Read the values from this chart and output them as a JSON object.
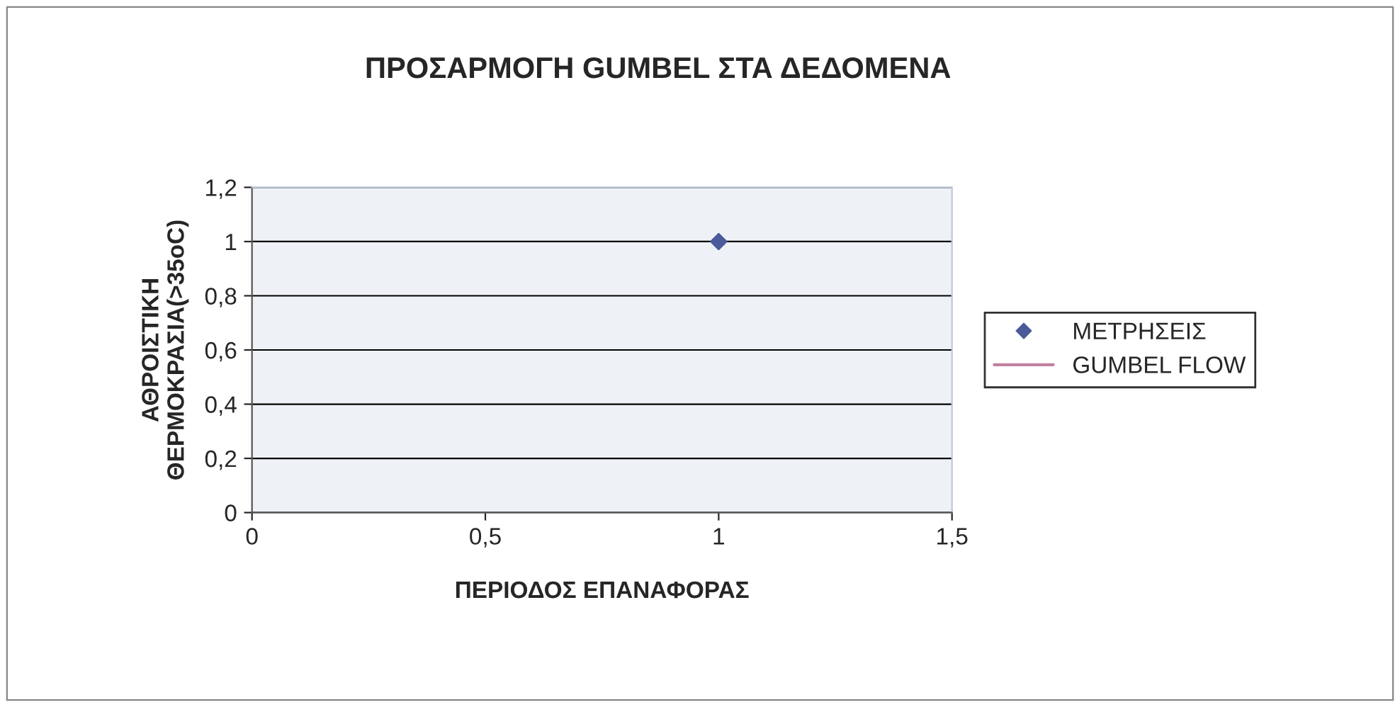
{
  "chart_data": {
    "type": "scatter",
    "title": "ΠΡΟΣΑΡΜΟΓΗ GUMBEL ΣΤΑ ΔΕΔΟΜΕΝΑ",
    "xlabel": "ΠΕΡΙΟΔΟΣ ΕΠΑΝΑΦΟΡΑΣ",
    "ylabel": "ΑΘΡΟΙΣΤΙΚΗ\nΘΕΡΜΟΚΡΑΣΙΑ(>35oC)",
    "series": [
      {
        "name": "ΜΕΤΡΗΣΕΙΣ",
        "color": "#4a5a9a",
        "marker": "diamond",
        "x": [
          1
        ],
        "values": [
          1
        ]
      },
      {
        "name": "GUMBEL FLOW",
        "type": "line",
        "color": "#c080a0",
        "marker": "none"
      }
    ],
    "xlim": [
      0,
      1.5
    ],
    "xticks": [
      {
        "value": 0,
        "label": "0"
      },
      {
        "value": 0.5,
        "label": "0,5"
      },
      {
        "value": 1,
        "label": "1"
      },
      {
        "value": 1.5,
        "label": "1,5"
      }
    ],
    "ylim": [
      0,
      1.2
    ],
    "yticks": [
      {
        "value": 0,
        "label": "0"
      },
      {
        "value": 0.2,
        "label": "0,2"
      },
      {
        "value": 0.4,
        "label": "0,4"
      },
      {
        "value": 0.6,
        "label": "0,6"
      },
      {
        "value": 0.8,
        "label": "0,8"
      },
      {
        "value": 1,
        "label": "1"
      },
      {
        "value": 1.2,
        "label": "1,2"
      }
    ],
    "grid": "y",
    "legend": "right"
  }
}
